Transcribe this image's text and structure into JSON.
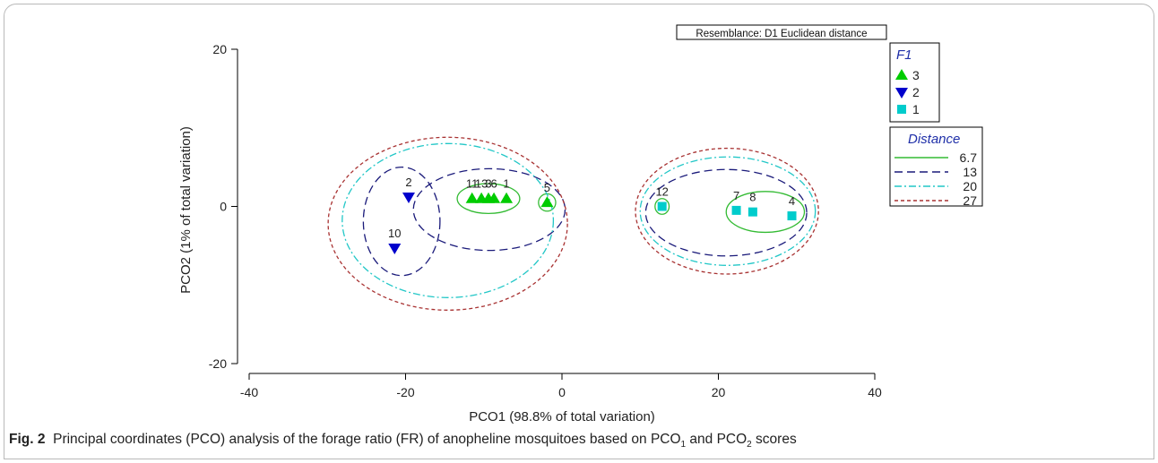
{
  "chart_data": {
    "type": "scatter",
    "xlabel": "PCO1 (98.8% of total variation)",
    "ylabel": "PCO2 (1% of total variation)",
    "xlim": [
      -40,
      40
    ],
    "ylim": [
      -20,
      20
    ],
    "xticks": [
      -40,
      -20,
      0,
      20,
      40
    ],
    "yticks": [
      -20,
      0,
      20
    ],
    "resemblance_label": "Resemblance: D1 Euclidean distance",
    "legend_title": "F1",
    "series": [
      {
        "name": "3",
        "marker": "triangle-up",
        "color": "#00cc00",
        "points": [
          {
            "label": "11",
            "x": -11.5,
            "y": 1.0
          },
          {
            "label": "13",
            "x": -10.3,
            "y": 1.0
          },
          {
            "label": "3",
            "x": -9.4,
            "y": 1.0
          },
          {
            "label": "6",
            "x": -8.7,
            "y": 1.0
          },
          {
            "label": "1",
            "x": -7.1,
            "y": 1.0
          },
          {
            "label": "5",
            "x": -1.9,
            "y": 0.5
          }
        ]
      },
      {
        "name": "2",
        "marker": "triangle-down",
        "color": "#0000cc",
        "points": [
          {
            "label": "2",
            "x": -19.6,
            "y": 1.2
          },
          {
            "label": "10",
            "x": -21.4,
            "y": -5.3
          }
        ]
      },
      {
        "name": "1",
        "marker": "square",
        "color": "#00cccc",
        "points": [
          {
            "label": "12",
            "x": 12.8,
            "y": 0.0
          },
          {
            "label": "7",
            "x": 22.3,
            "y": -0.5
          },
          {
            "label": "8",
            "x": 24.4,
            "y": -0.7
          },
          {
            "label": "4",
            "x": 29.4,
            "y": -1.2
          }
        ]
      }
    ],
    "distance_legend_title": "Distance",
    "distance_levels": [
      {
        "label": "6.7",
        "color": "#33bb33",
        "dash": "solid"
      },
      {
        "label": "13",
        "color": "#1a1a7a",
        "dash": "long"
      },
      {
        "label": "20",
        "color": "#22c7c7",
        "dash": "dashdot"
      },
      {
        "label": "27",
        "color": "#a83232",
        "dash": "short"
      }
    ]
  },
  "caption": {
    "fig": "Fig. 2",
    "text": "Principal coordinates (PCO) analysis of the forage ratio (FR) of anopheline mosquitoes based on PCO",
    "sub1": "1",
    "and": " and PCO",
    "sub2": "2",
    "end": " scores"
  }
}
